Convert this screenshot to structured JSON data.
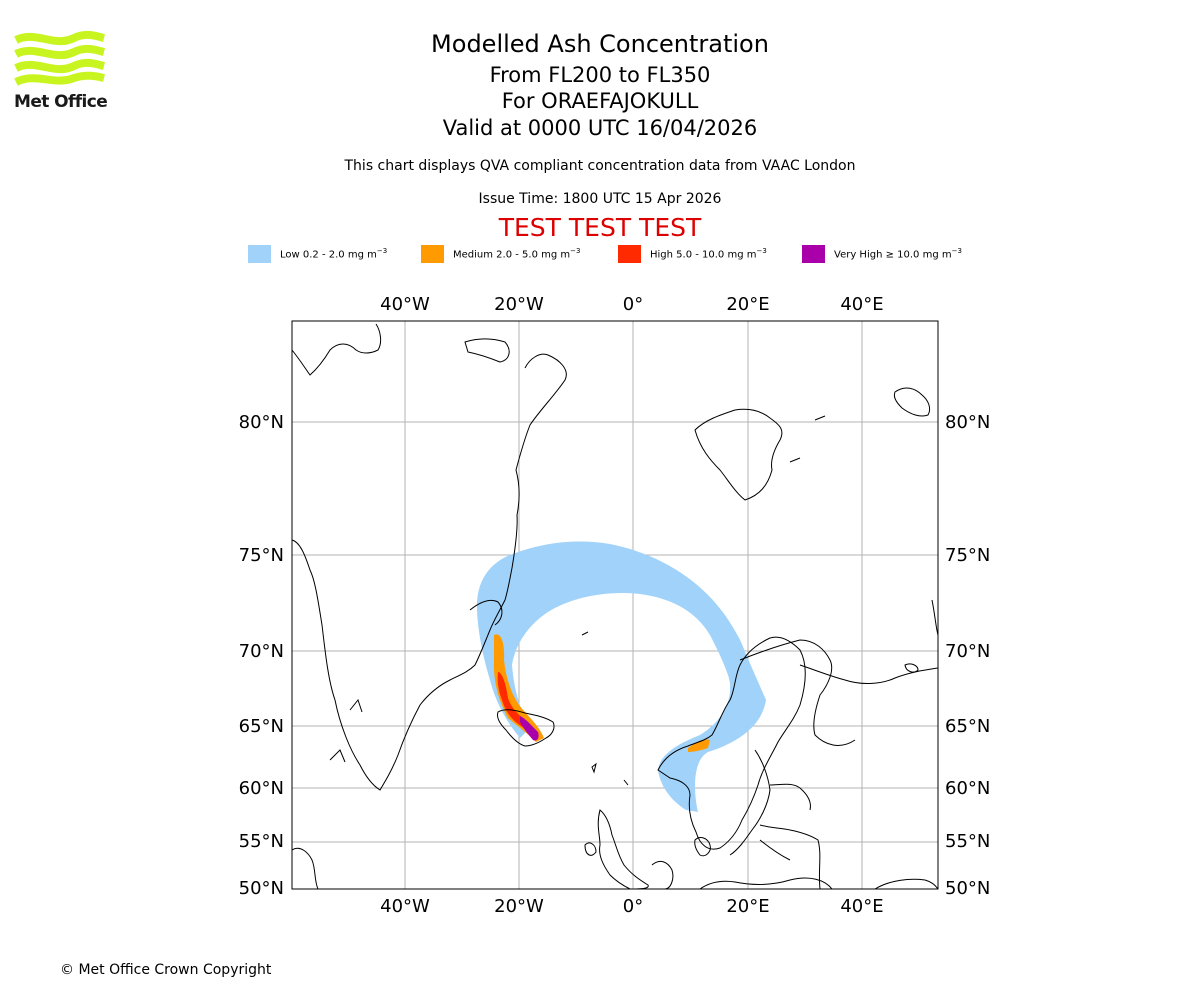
{
  "logo": {
    "text": "Met Office",
    "color": "#c8f520"
  },
  "header": {
    "title": "Modelled Ash Concentration",
    "levels": "From FL200 to FL350",
    "volcano": "For ORAEFAJOKULL",
    "valid": "Valid at 0000 UTC 16/04/2026",
    "description": "This chart displays QVA compliant concentration data from VAAC London",
    "issue_time": "Issue Time: 1800 UTC 15 Apr 2026",
    "test_banner": "TEST TEST TEST",
    "test_color": "#dd0000"
  },
  "legend": [
    {
      "name": "Low",
      "text": "Low 0.2 - 2.0 mg m",
      "color": "#a0d2fa"
    },
    {
      "name": "Medium",
      "text": "Medium 2.0 - 5.0 mg m",
      "color": "#ff9a00"
    },
    {
      "name": "High",
      "text": "High 5.0 - 10.0 mg m",
      "color": "#ff2a00"
    },
    {
      "name": "Very High",
      "text": "Very High  ≥  10.0 mg m",
      "color": "#aa00aa"
    }
  ],
  "legend_unit_exponent": "−3",
  "map": {
    "longitude_labels": [
      "40°W",
      "20°W",
      "0°",
      "20°E",
      "40°E"
    ],
    "latitude_labels": [
      "80°N",
      "75°N",
      "70°N",
      "65°N",
      "60°N",
      "55°N",
      "50°N"
    ],
    "grid": true
  },
  "footer": {
    "copyright": "© Met Office Crown Copyright"
  }
}
